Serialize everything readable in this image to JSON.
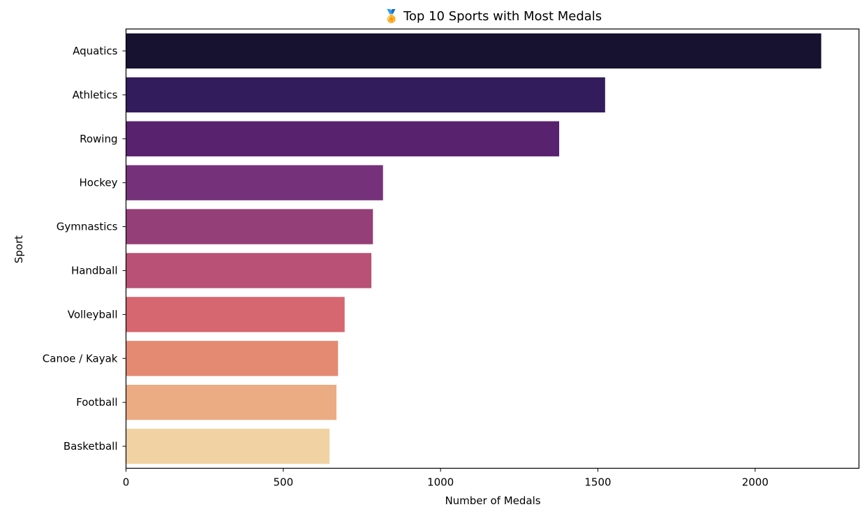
{
  "chart_data": {
    "type": "bar",
    "orientation": "horizontal",
    "title": "🏅 Top 10 Sports with Most Medals",
    "xlabel": "Number of Medals",
    "ylabel": "Sport",
    "xlim": [
      0,
      2330
    ],
    "xticks": [
      0,
      500,
      1000,
      1500,
      2000
    ],
    "grid": false,
    "categories": [
      "Aquatics",
      "Athletics",
      "Rowing",
      "Hockey",
      "Gymnastics",
      "Handball",
      "Volleyball",
      "Canoe / Kayak",
      "Football",
      "Basketball"
    ],
    "values": [
      2210,
      1523,
      1377,
      817,
      785,
      780,
      695,
      674,
      669,
      647
    ],
    "colors": [
      "#161230",
      "#331c5c",
      "#58226f",
      "#75327a",
      "#953f78",
      "#b85175",
      "#d6666f",
      "#e58a72",
      "#ebac84",
      "#f1d2a2"
    ]
  }
}
